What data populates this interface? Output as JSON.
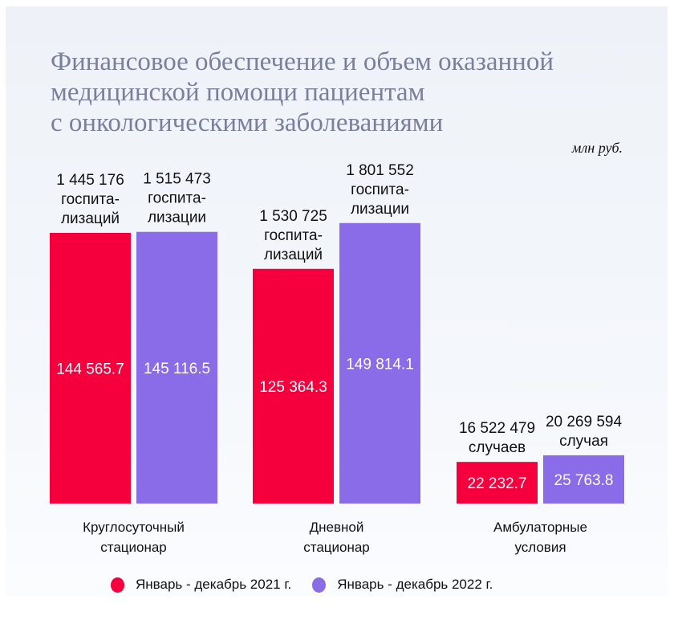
{
  "chart_data": {
    "type": "bar",
    "title": "Финансовое обеспечение и объем оказанной медицинской помощи пациентам с онкологическими заболеваниями",
    "title_lines": [
      "Финансовое обеспечение и объем оказанной",
      "медицинской помощи пациентам",
      "с онкологическими заболеваниями"
    ],
    "unit": "млн руб.",
    "categories": [
      "Круглосуточный стационар",
      "Дневной стационар",
      "Амбулаторные условия"
    ],
    "category_lines": [
      [
        "Круглосуточный",
        "стационар"
      ],
      [
        "Дневной",
        "стационар"
      ],
      [
        "Амбулаторные",
        "условия"
      ]
    ],
    "ylim": [
      0,
      150000
    ],
    "grid": false,
    "legend_position": "bottom",
    "series": [
      {
        "name": "Январь - декабрь 2021 г.",
        "color": "#f5003d",
        "values": [
          144565.7,
          125364.3,
          22232.7
        ],
        "value_labels": [
          "144 565.7",
          "125 364.3",
          "22 232.7"
        ],
        "annotations": [
          [
            "1 445 176",
            "госпита-",
            "лизаций"
          ],
          [
            "1 530 725",
            "госпита-",
            "лизаций"
          ],
          [
            "16 522 479",
            "случаев"
          ]
        ]
      },
      {
        "name": "Январь - декабрь 2022 г.",
        "color": "#8a6be8",
        "values": [
          145116.5,
          149814.1,
          25763.8
        ],
        "value_labels": [
          "145 116.5",
          "149 814.1",
          "25 763.8"
        ],
        "annotations": [
          [
            "1 515 473",
            "госпита-",
            "лизации"
          ],
          [
            "1 801 552",
            "госпита-",
            "лизации"
          ],
          [
            "20 269 594",
            "случая"
          ]
        ]
      }
    ]
  }
}
